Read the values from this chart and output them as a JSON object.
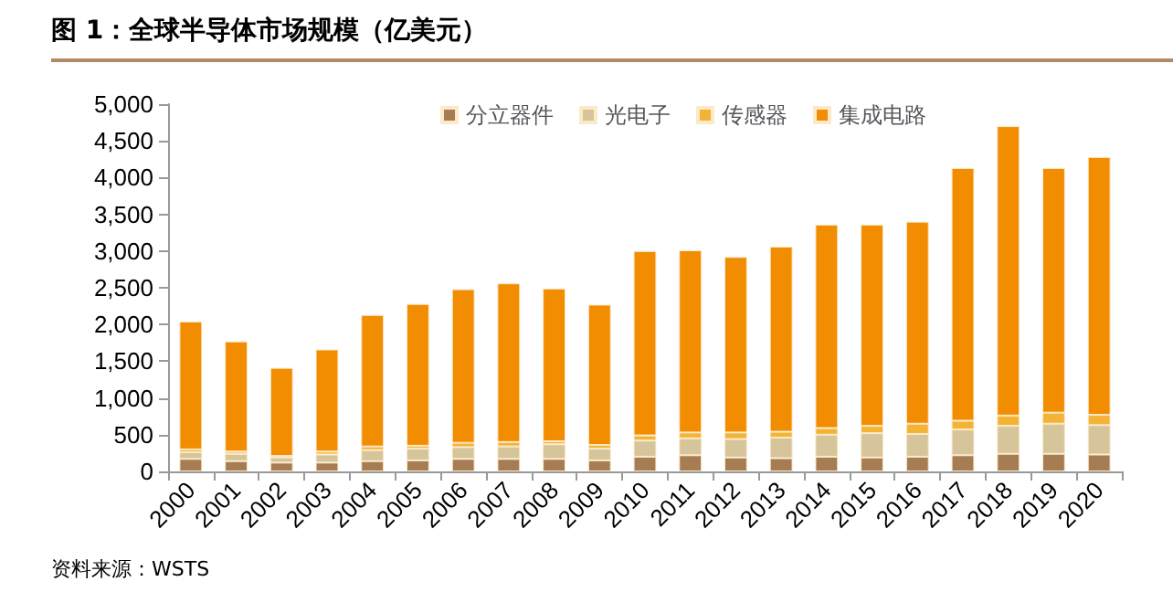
{
  "chart_data": {
    "type": "bar",
    "stacked": true,
    "title": "图 1：全球半导体市场规模（亿美元）",
    "annotations": [
      "资料来源：WSTS"
    ],
    "categories": [
      "2000",
      "2001",
      "2002",
      "2003",
      "2004",
      "2005",
      "2006",
      "2007",
      "2008",
      "2009",
      "2010",
      "2011",
      "2012",
      "2013",
      "2014",
      "2015",
      "2016",
      "2017",
      "2018",
      "2019",
      "2020"
    ],
    "series": [
      {
        "name": "分立器件",
        "color": "#a67c52",
        "values": [
          170,
          140,
          120,
          120,
          140,
          150,
          170,
          170,
          170,
          150,
          200,
          220,
          190,
          180,
          200,
          190,
          200,
          220,
          240,
          240,
          230
        ]
      },
      {
        "name": "光电子",
        "color": "#d6c49a",
        "values": [
          90,
          100,
          70,
          110,
          150,
          160,
          160,
          170,
          200,
          160,
          220,
          230,
          250,
          280,
          300,
          330,
          310,
          350,
          380,
          410,
          400
        ]
      },
      {
        "name": "传感器",
        "color": "#f5b335",
        "values": [
          40,
          30,
          20,
          40,
          50,
          40,
          60,
          60,
          40,
          50,
          70,
          80,
          90,
          80,
          90,
          100,
          140,
          120,
          140,
          150,
          140
        ]
      },
      {
        "name": "集成电路",
        "color": "#f28c00",
        "values": [
          1740,
          1500,
          1200,
          1390,
          1790,
          1930,
          2090,
          2160,
          2080,
          1910,
          2510,
          2480,
          2390,
          2520,
          2770,
          2740,
          2750,
          3440,
          3940,
          3330,
          3510
        ]
      }
    ],
    "ylim": [
      0,
      5000
    ],
    "yticks": [
      0,
      500,
      {
        "value": 1000,
        "label": "1,000"
      },
      {
        "value": 1500,
        "label": "1,500"
      },
      {
        "value": 2000,
        "label": "2,000"
      },
      {
        "value": 2500,
        "label": "2,500"
      },
      {
        "value": 3000,
        "label": "3,000"
      },
      {
        "value": 3500,
        "label": "3,500"
      },
      {
        "value": 4000,
        "label": "4,000"
      },
      {
        "value": 4500,
        "label": "4,500"
      },
      {
        "value": 5000,
        "label": "5,000"
      }
    ],
    "grid": false,
    "legend": "top right"
  }
}
